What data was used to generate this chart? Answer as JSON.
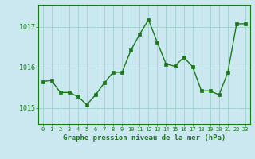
{
  "x": [
    0,
    1,
    2,
    3,
    4,
    5,
    6,
    7,
    8,
    9,
    10,
    11,
    12,
    13,
    14,
    15,
    16,
    17,
    18,
    19,
    20,
    21,
    22,
    23
  ],
  "y": [
    1015.65,
    1015.68,
    1015.38,
    1015.38,
    1015.28,
    1015.08,
    1015.32,
    1015.62,
    1015.88,
    1015.88,
    1016.42,
    1016.82,
    1017.18,
    1016.62,
    1016.08,
    1016.03,
    1016.25,
    1016.02,
    1015.42,
    1015.42,
    1015.32,
    1015.88,
    1017.08,
    1017.08
  ],
  "line_color": "#1a7a1a",
  "marker_color": "#1a7a1a",
  "bg_color": "#cbe8f0",
  "grid_color": "#9ecfcc",
  "xlabel": "Graphe pression niveau de la mer (hPa)",
  "xlabel_color": "#1a7a1a",
  "tick_color": "#1a7a1a",
  "ylim": [
    1014.6,
    1017.55
  ],
  "yticks": [
    1015,
    1016,
    1017
  ],
  "xlim": [
    -0.5,
    23.5
  ],
  "xticks": [
    0,
    1,
    2,
    3,
    4,
    5,
    6,
    7,
    8,
    9,
    10,
    11,
    12,
    13,
    14,
    15,
    16,
    17,
    18,
    19,
    20,
    21,
    22,
    23
  ]
}
